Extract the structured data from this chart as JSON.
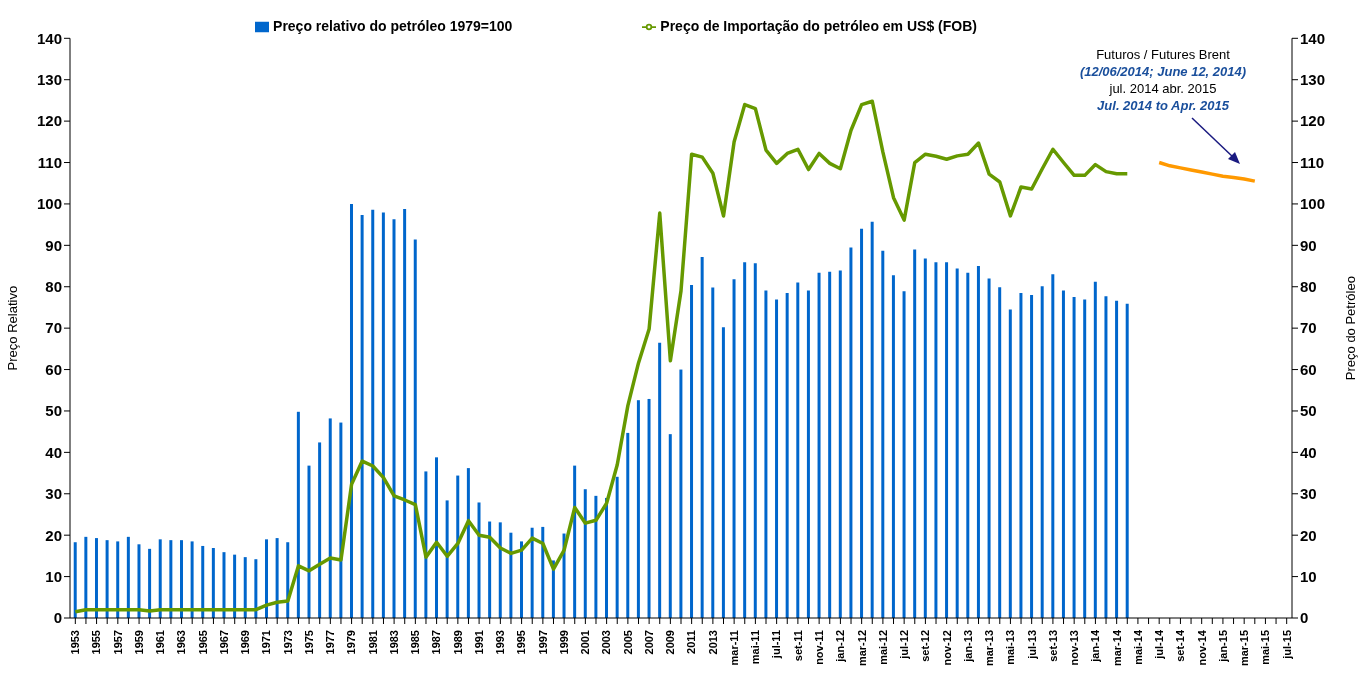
{
  "chart_data": {
    "type": "bar",
    "ylabel": "Preço Relativo",
    "y2label": "Preço do Petróleo",
    "annotations": [
      "Futuros / Futures Brent",
      "(12/06/2014;  June 12, 2014)",
      "jul. 2014 abr. 2015",
      "Jul. 2014 to  Apr. 2015"
    ],
    "categories": [
      "1953",
      null,
      "1955",
      null,
      "1957",
      null,
      "1959",
      null,
      "1961",
      null,
      "1963",
      null,
      "1965",
      null,
      "1967",
      null,
      "1969",
      null,
      "1971",
      null,
      "1973",
      null,
      "1975",
      null,
      "1977",
      null,
      "1979",
      null,
      "1981",
      null,
      "1983",
      null,
      "1985",
      null,
      "1987",
      null,
      "1989",
      null,
      "1991",
      null,
      "1993",
      null,
      "1995",
      null,
      "1997",
      null,
      "1999",
      null,
      "2001",
      null,
      "2003",
      null,
      "2005",
      null,
      "2007",
      null,
      "2009",
      null,
      "2011",
      null,
      "2013",
      null,
      "mar-11",
      null,
      "mai-11",
      null,
      "jul-11",
      null,
      "set-11",
      null,
      "nov-11",
      null,
      "jan-12",
      null,
      "mar-12",
      null,
      "mai-12",
      null,
      "jul-12",
      null,
      "set-12",
      null,
      "nov-12",
      null,
      "jan-13",
      null,
      "mar-13",
      null,
      "mai-13",
      null,
      "jul-13",
      null,
      "set-13",
      null,
      "nov-13",
      null,
      "jan-14",
      null,
      "mar-14",
      null,
      "mai-14",
      null,
      "jul-14",
      null,
      "set-14",
      null,
      "nov-14",
      null,
      "jan-15",
      null,
      "mar-15",
      null,
      "mai-15",
      null,
      "jul-15"
    ],
    "series": [
      {
        "name": "Preço relativo do petróleo 1979=100",
        "color": "#0066cc",
        "values": [
          18.3,
          19.6,
          19.3,
          18.8,
          18.5,
          19.6,
          17.8,
          16.7,
          19,
          18.8,
          18.8,
          18.5,
          17.4,
          16.9,
          15.9,
          15.3,
          14.7,
          14.2,
          19,
          19.3,
          18.3,
          49.8,
          36.8,
          42.4,
          48.2,
          47.2,
          100,
          97.3,
          98.6,
          97.9,
          96.3,
          98.8,
          91.4,
          35.4,
          38.8,
          28.4,
          34.4,
          36.2,
          27.9,
          23.3,
          23.1,
          20.6,
          18.5,
          21.8,
          22,
          13.9,
          20.4,
          36.8,
          31.1,
          29.5,
          29,
          34.1,
          44.7,
          52.6,
          52.9,
          66.5,
          44.4,
          60,
          80.4,
          87.2,
          79.8,
          70.2,
          81.8,
          85.9,
          85.7,
          79.1,
          76.9,
          78.5,
          81,
          79.1,
          83.4,
          83.6,
          83.9,
          89.5,
          94,
          95.7,
          88.7,
          82.8,
          78.9,
          89,
          86.8,
          85.9,
          85.9,
          84.4,
          83.4,
          85,
          82,
          79.9,
          74.5,
          78.5,
          78,
          80.1,
          83,
          79.1,
          77.5,
          76.9,
          81.2,
          77.7,
          76.6,
          75.9,
          null,
          null,
          null,
          null,
          null,
          null,
          null,
          null,
          null,
          null,
          null,
          null,
          null,
          null,
          null
        ]
      },
      {
        "name": "Preço de Importação do petróleo em US$ (FOB)",
        "type": "line",
        "axis": "y2",
        "color": "#669900",
        "values": [
          1.5,
          2,
          2,
          2,
          2,
          2,
          2,
          1.7,
          2,
          2,
          2,
          2,
          2,
          2,
          2,
          2,
          2,
          2,
          3.1,
          3.8,
          4.1,
          12.6,
          11.4,
          13,
          14.5,
          14,
          32.3,
          37.9,
          36.7,
          33.9,
          29.5,
          28.5,
          27.4,
          14.7,
          18.3,
          14.9,
          18,
          23.5,
          20,
          19.5,
          16.9,
          15.6,
          16.4,
          19.3,
          18,
          11.8,
          16.4,
          26.7,
          22.9,
          23.6,
          27.7,
          37,
          51.3,
          61.6,
          69.8,
          97.8,
          62.1,
          79,
          112,
          111.3,
          107.4,
          97.1,
          115,
          124,
          123,
          113,
          109.8,
          112.2,
          113.2,
          108.3,
          112.2,
          109.8,
          108.5,
          117.8,
          124,
          124.8,
          112.5,
          101.5,
          96.1,
          110,
          112,
          111.5,
          110.8,
          111.6,
          112,
          114.7,
          107.2,
          105.3,
          97.1,
          104.1,
          103.6,
          108.5,
          113.2,
          110,
          106.9,
          106.9,
          109.5,
          107.8,
          107.3,
          107.3,
          null,
          null,
          null,
          null,
          null,
          null,
          null,
          null,
          null,
          null,
          null,
          null,
          null,
          null,
          null
        ]
      },
      {
        "type": "line",
        "axis": "y2",
        "color": "#ff9900",
        "values": [
          null,
          null,
          null,
          null,
          null,
          null,
          null,
          null,
          null,
          null,
          null,
          null,
          null,
          null,
          null,
          null,
          null,
          null,
          null,
          null,
          null,
          null,
          null,
          null,
          null,
          null,
          null,
          null,
          null,
          null,
          null,
          null,
          null,
          null,
          null,
          null,
          null,
          null,
          null,
          null,
          null,
          null,
          null,
          null,
          null,
          null,
          null,
          null,
          null,
          null,
          null,
          null,
          null,
          null,
          null,
          null,
          null,
          null,
          null,
          null,
          null,
          null,
          null,
          null,
          null,
          null,
          null,
          null,
          null,
          null,
          null,
          null,
          null,
          null,
          null,
          null,
          null,
          null,
          null,
          null,
          null,
          null,
          null,
          null,
          null,
          null,
          null,
          null,
          null,
          null,
          null,
          null,
          null,
          null,
          null,
          null,
          null,
          null,
          null,
          null,
          null,
          null,
          110,
          109.2,
          108.7,
          108.2,
          107.7,
          107.2,
          106.7,
          106.4,
          106,
          105.5,
          null,
          null,
          null
        ]
      }
    ],
    "ylim": [
      0,
      140
    ],
    "yticks": [
      0,
      10,
      20,
      30,
      40,
      50,
      60,
      70,
      80,
      90,
      100,
      110,
      120,
      130,
      140
    ],
    "y2lim": [
      0,
      140
    ],
    "y2ticks": [
      0,
      10,
      20,
      30,
      40,
      50,
      60,
      70,
      80,
      90,
      100,
      110,
      120,
      130,
      140
    ],
    "legend": "top",
    "grid": false,
    "marker": "none",
    "line_style": "solid"
  }
}
